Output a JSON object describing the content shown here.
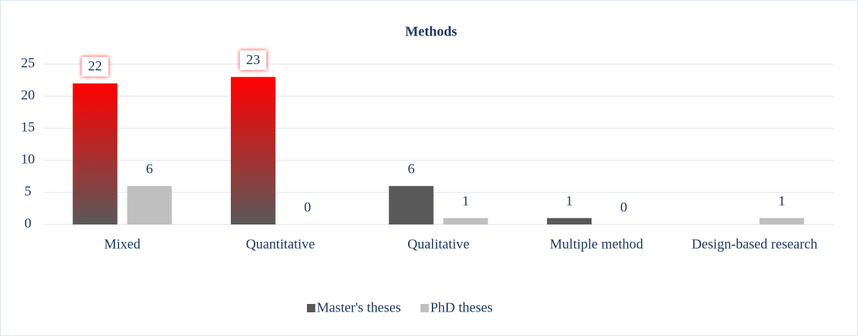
{
  "chart_data": {
    "type": "bar",
    "title": "Methods",
    "categories": [
      "Mixed",
      "Quantitative",
      "Qualitative",
      "Multiple method",
      "Design-based research"
    ],
    "series": [
      {
        "name": "Master's theses",
        "color": "#595959",
        "values": [
          22,
          23,
          6,
          1,
          null
        ]
      },
      {
        "name": "PhD theses",
        "color": "#bfbfbf",
        "values": [
          6,
          0,
          1,
          0,
          1
        ]
      }
    ],
    "highlight_color": "#ff0000",
    "highlighted_indices": [
      0,
      1
    ],
    "ylim": [
      0,
      25
    ],
    "yticks": [
      0,
      5,
      10,
      15,
      20,
      25
    ],
    "grid": true,
    "legend": "bottom"
  }
}
